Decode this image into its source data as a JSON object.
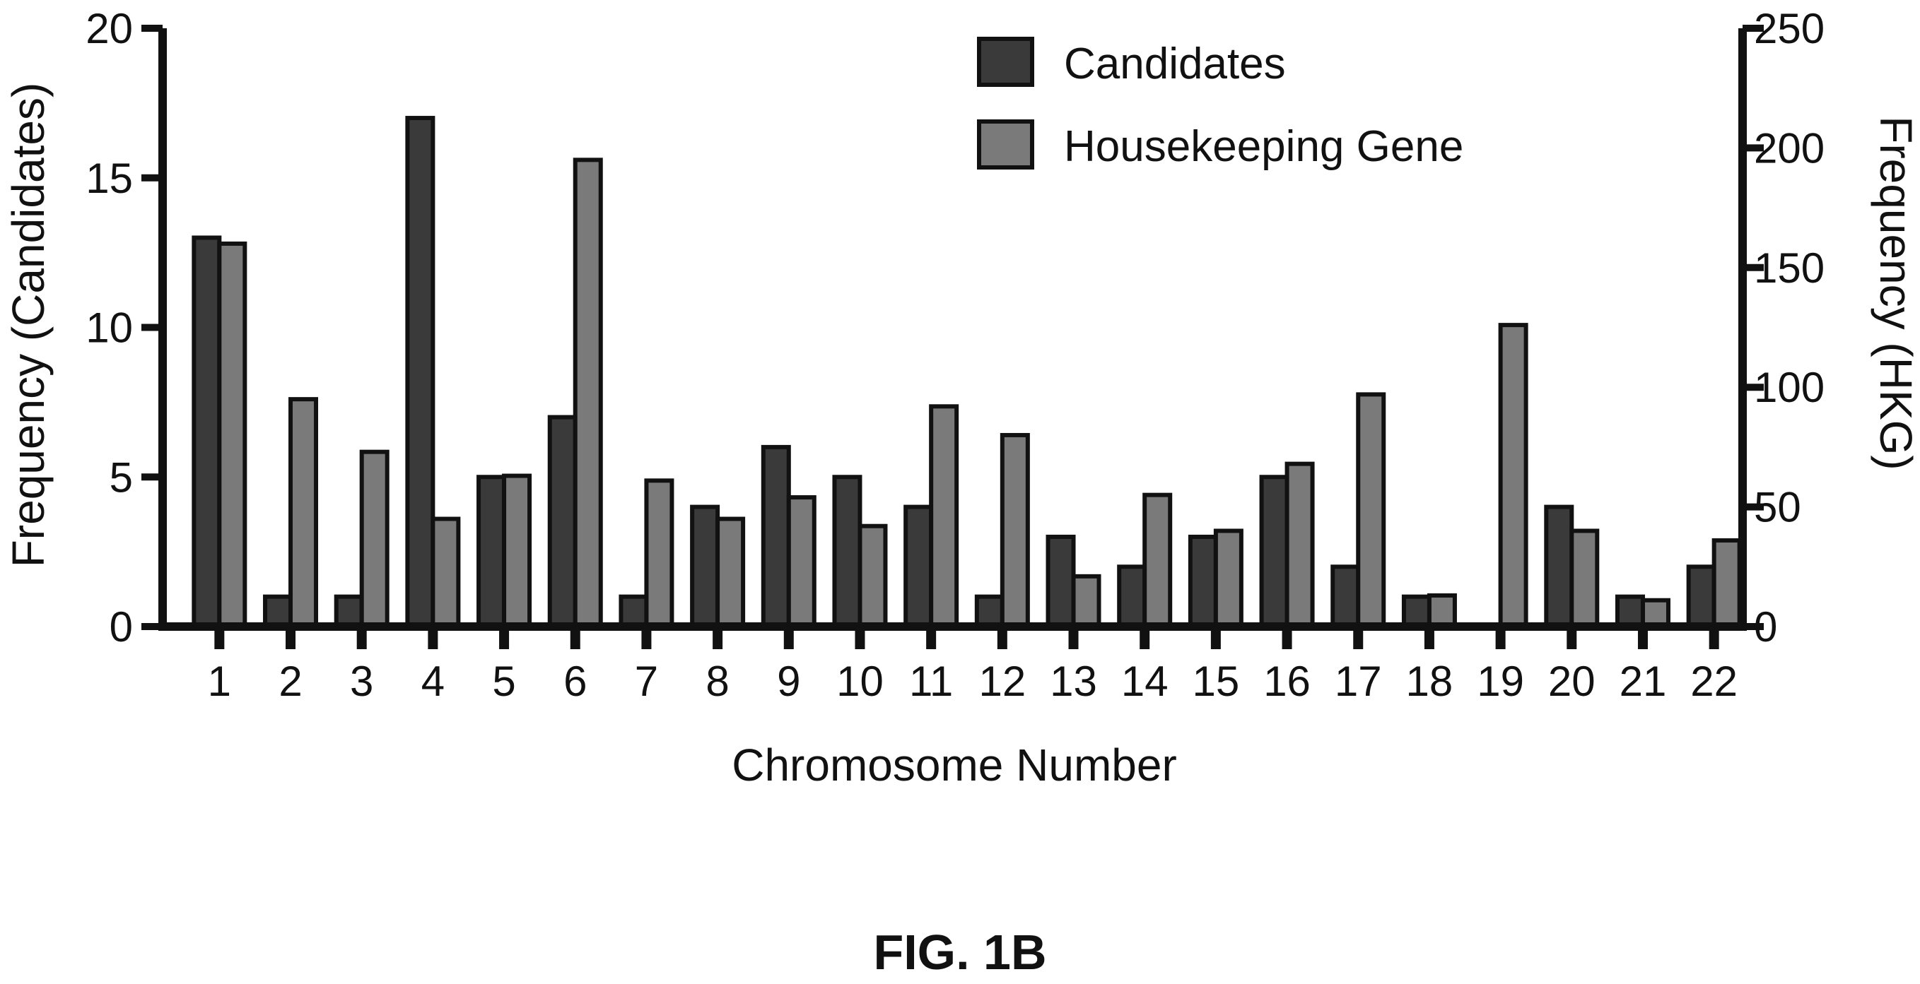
{
  "figure_label": "FIG. 1B",
  "colors": {
    "candidates": "#3a3a3a",
    "housekeeping": "#7a7a7a",
    "axis": "#111111",
    "bar_stroke": "#111111",
    "background": "#ffffff"
  },
  "chart_data": {
    "type": "bar",
    "xlabel": "Chromosome Number",
    "ylabel_left": "Frequency (Candidates)",
    "ylabel_right": "Frequency (HKG)",
    "categories": [
      "1",
      "2",
      "3",
      "4",
      "5",
      "6",
      "7",
      "8",
      "9",
      "10",
      "11",
      "12",
      "13",
      "14",
      "15",
      "16",
      "17",
      "18",
      "19",
      "20",
      "21",
      "22"
    ],
    "ylim_left": [
      0,
      20
    ],
    "ylim_right": [
      0,
      250
    ],
    "yticks_left": [
      "0",
      "5",
      "10",
      "15",
      "20"
    ],
    "yticks_right": [
      "0",
      "50",
      "100",
      "150",
      "200",
      "250"
    ],
    "grid": false,
    "legend_position": "top-center",
    "series": [
      {
        "name": "Candidates",
        "axis": "left",
        "values": [
          13,
          1,
          1,
          17,
          5,
          7,
          1,
          4,
          6,
          5,
          4,
          1,
          3,
          2,
          3,
          5,
          2,
          1,
          0,
          4,
          1,
          2
        ]
      },
      {
        "name": "Housekeeping Gene",
        "axis": "right",
        "values": [
          160,
          95,
          73,
          45,
          63,
          195,
          61,
          45,
          54,
          42,
          92,
          80,
          21,
          55,
          40,
          68,
          97,
          13,
          126,
          40,
          11,
          36
        ]
      }
    ]
  }
}
